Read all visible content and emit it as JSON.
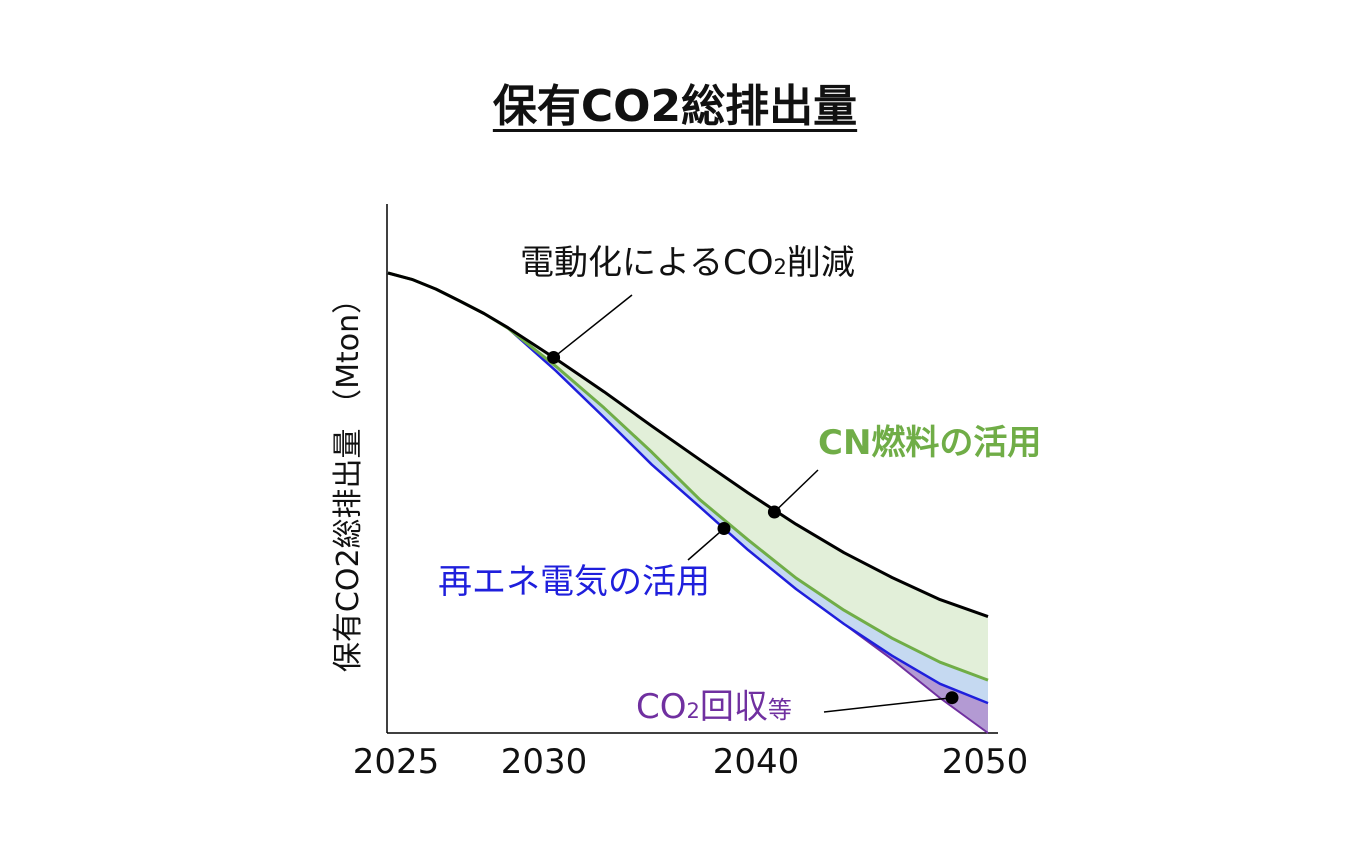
{
  "chart_data": {
    "type": "area",
    "title": "保有CO2総排出量",
    "ylabel": "保有CO2総排出量 （Mton）",
    "xlabel": "",
    "x_ticks": [
      "2025",
      "2030",
      "2040",
      "2050"
    ],
    "xlim": [
      2024.5,
      2050.5
    ],
    "ylim": [
      0,
      100
    ],
    "x": [
      2025,
      2026,
      2027,
      2028,
      2029,
      2030,
      2032,
      2034,
      2036,
      2038,
      2040,
      2042,
      2044,
      2046,
      2048,
      2050
    ],
    "series": [
      {
        "key": "total",
        "color": "#000000",
        "values": [
          100,
          98.6,
          96.5,
          93.9,
          91.2,
          88.1,
          81.3,
          74.2,
          66.7,
          59.4,
          52.2,
          45.4,
          39.2,
          33.8,
          29.0,
          25.3
        ]
      },
      {
        "key": "cn",
        "color": "#70ad47",
        "values": [
          100,
          98.6,
          96.5,
          93.9,
          91.2,
          88.0,
          79.7,
          70.7,
          61.0,
          50.7,
          42.0,
          33.7,
          26.7,
          20.6,
          15.4,
          11.5
        ]
      },
      {
        "key": "re",
        "color": "#1f1fdc",
        "values": [
          100,
          98.6,
          96.5,
          93.9,
          91.2,
          88.0,
          78.7,
          68.6,
          58.3,
          49.1,
          39.8,
          31.3,
          23.7,
          16.8,
          10.7,
          6.5
        ]
      },
      {
        "key": "cc",
        "color": "#7030a0",
        "values": [
          100,
          98.6,
          96.5,
          93.9,
          91.2,
          88.0,
          78.7,
          68.6,
          58.3,
          49.1,
          39.8,
          31.3,
          23.7,
          16.0,
          7.6,
          0
        ]
      }
    ],
    "fills": {
      "cn": "#e2efd9",
      "re": "#c5d9f1",
      "cc": "#b39ad3"
    },
    "annotations": {
      "electrification": {
        "text_main": "電動化によるCO",
        "text_sub": "2",
        "text_tail": "削減"
      },
      "cn_fuel": {
        "text": "CN燃料の活用"
      },
      "renewable": {
        "text": "再エネ電気の活用"
      },
      "carbon_capture": {
        "text_main": "CO",
        "text_sub": "2",
        "text_tail": "回収",
        "text_suffix": "等"
      }
    }
  }
}
